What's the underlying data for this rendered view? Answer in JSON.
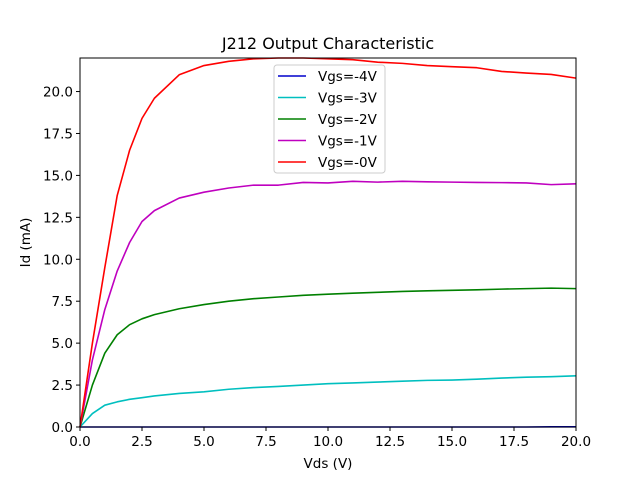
{
  "chart_data": {
    "type": "line",
    "title": "J212 Output Characteristic",
    "xlabel": "Vds (V)",
    "ylabel": "Id (mA)",
    "xlim": [
      0,
      20
    ],
    "ylim": [
      0,
      22
    ],
    "xticks": [
      0,
      2.5,
      5,
      7.5,
      10,
      12.5,
      15,
      17.5,
      20
    ],
    "xtick_labels": [
      "0.0",
      "2.5",
      "5.0",
      "7.5",
      "10.0",
      "12.5",
      "15.0",
      "17.5",
      "20.0"
    ],
    "yticks": [
      0,
      2.5,
      5,
      7.5,
      10,
      12.5,
      15,
      17.5,
      20
    ],
    "ytick_labels": [
      "0.0",
      "2.5",
      "5.0",
      "7.5",
      "10.0",
      "12.5",
      "15.0",
      "17.5",
      "20.0"
    ],
    "grid": false,
    "legend_position": "top-center",
    "x": [
      0,
      0.5,
      1,
      1.5,
      2,
      2.5,
      3,
      4,
      5,
      6,
      7,
      8,
      9,
      10,
      11,
      12,
      13,
      14,
      15,
      16,
      17,
      18,
      19,
      20
    ],
    "series": [
      {
        "name": "Vgs=-4V",
        "color": "#0000cc",
        "values": [
          0,
          0,
          0,
          0,
          0,
          0,
          0,
          0,
          0,
          0,
          0,
          0,
          0,
          0,
          0,
          0,
          0,
          0,
          0,
          0,
          0,
          0,
          0.01,
          0.01
        ]
      },
      {
        "name": "Vgs=-3V",
        "color": "#00bfbf",
        "values": [
          0,
          0.8,
          1.3,
          1.5,
          1.65,
          1.75,
          1.85,
          2.0,
          2.1,
          2.25,
          2.35,
          2.42,
          2.5,
          2.58,
          2.63,
          2.68,
          2.73,
          2.78,
          2.8,
          2.85,
          2.92,
          2.97,
          3.0,
          3.05
        ]
      },
      {
        "name": "Vgs=-2V",
        "color": "#008000",
        "values": [
          0,
          2.5,
          4.4,
          5.5,
          6.1,
          6.45,
          6.7,
          7.05,
          7.3,
          7.5,
          7.65,
          7.75,
          7.85,
          7.92,
          7.98,
          8.03,
          8.08,
          8.12,
          8.15,
          8.18,
          8.22,
          8.25,
          8.28,
          8.25
        ]
      },
      {
        "name": "Vgs=-1V",
        "color": "#bf00bf",
        "values": [
          0,
          4.0,
          7.0,
          9.3,
          11.0,
          12.25,
          12.9,
          13.65,
          14.0,
          14.25,
          14.42,
          14.42,
          14.58,
          14.55,
          14.65,
          14.6,
          14.65,
          14.62,
          14.6,
          14.58,
          14.57,
          14.55,
          14.45,
          14.5
        ]
      },
      {
        "name": "Vgs=-0V",
        "color": "#ff0000",
        "values": [
          0,
          5.0,
          9.5,
          13.8,
          16.5,
          18.4,
          19.6,
          21.0,
          21.55,
          21.8,
          21.95,
          22.0,
          22.0,
          21.95,
          21.9,
          21.75,
          21.68,
          21.55,
          21.48,
          21.42,
          21.2,
          21.1,
          21.02,
          20.8
        ]
      }
    ]
  }
}
